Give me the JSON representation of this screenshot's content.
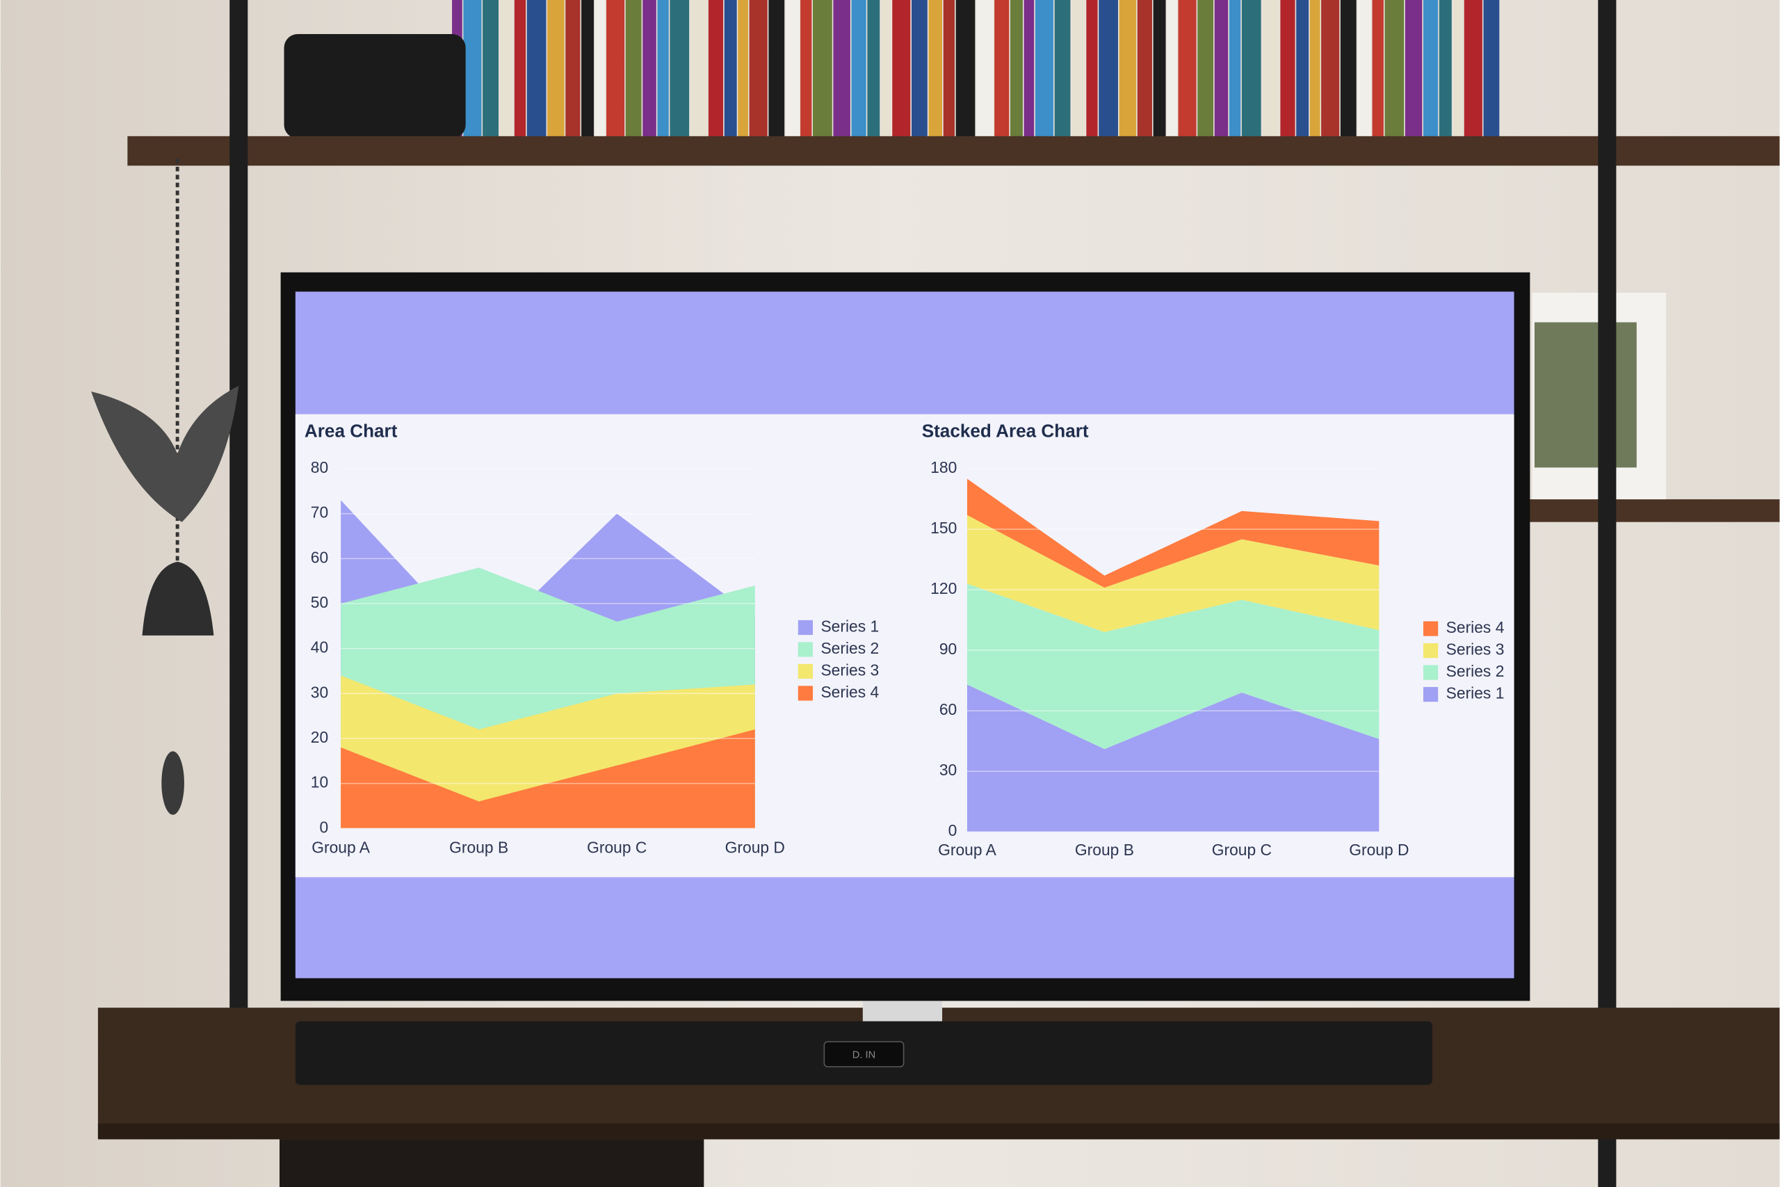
{
  "chart_data": [
    {
      "type": "area",
      "title": "Area Chart",
      "categories": [
        "Group A",
        "Group B",
        "Group C",
        "Group D"
      ],
      "series": [
        {
          "name": "Series 1",
          "color": "#a0a0f4",
          "values": [
            73,
            40,
            70,
            47
          ]
        },
        {
          "name": "Series 2",
          "color": "#a9f0cd",
          "values": [
            50,
            58,
            46,
            54
          ]
        },
        {
          "name": "Series 3",
          "color": "#f3e76e",
          "values": [
            34,
            22,
            30,
            32
          ]
        },
        {
          "name": "Series 4",
          "color": "#ff7b3f",
          "values": [
            18,
            6,
            14,
            22
          ]
        }
      ],
      "ylim": [
        0,
        80
      ],
      "yticks": [
        0,
        10,
        20,
        30,
        40,
        50,
        60,
        70,
        80
      ],
      "grid": true,
      "legend": "right"
    },
    {
      "type": "area",
      "stacked": true,
      "title": "Stacked Area Chart",
      "categories": [
        "Group A",
        "Group B",
        "Group C",
        "Group D"
      ],
      "series": [
        {
          "name": "Series 1",
          "color": "#a0a0f4",
          "values": [
            73,
            41,
            69,
            46
          ]
        },
        {
          "name": "Series 2",
          "color": "#a9f0cd",
          "values": [
            50,
            58,
            46,
            54
          ]
        },
        {
          "name": "Series 3",
          "color": "#f3e76e",
          "values": [
            34,
            22,
            30,
            32
          ]
        },
        {
          "name": "Series 4",
          "color": "#ff7b3f",
          "values": [
            18,
            6,
            14,
            22
          ]
        }
      ],
      "ylim": [
        0,
        180
      ],
      "yticks": [
        0,
        30,
        60,
        90,
        120,
        150,
        180
      ],
      "grid": true,
      "legend": "right"
    }
  ],
  "soundbar_display": "D. IN"
}
